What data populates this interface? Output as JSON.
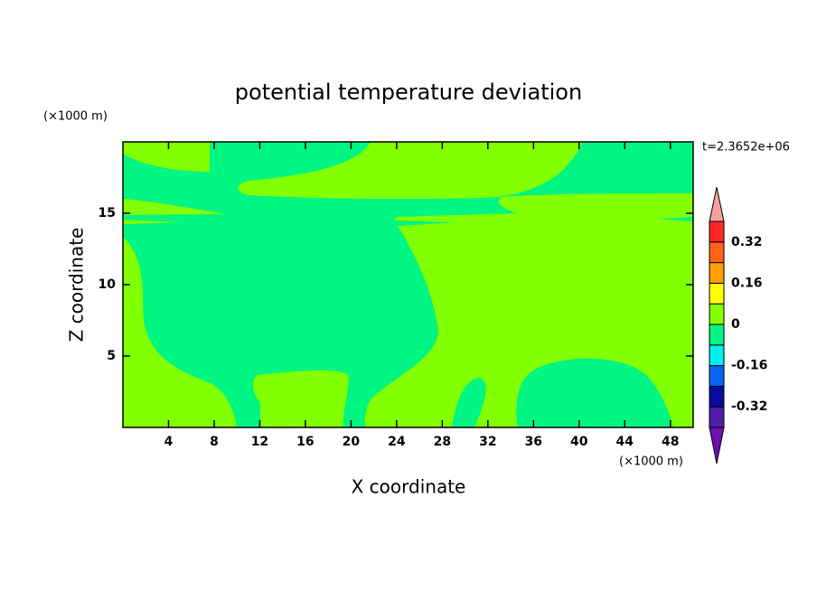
{
  "chart_data": {
    "type": "contour",
    "title": "potential temperature deviation",
    "xlabel": "X coordinate",
    "ylabel": "Z coordinate",
    "xunit": "(×1000 m)",
    "yunit": "(×1000 m)",
    "annotation": "t=2.3652e+06",
    "xlim": [
      0,
      50
    ],
    "ylim": [
      0,
      20
    ],
    "xticks": [
      4,
      8,
      12,
      16,
      20,
      24,
      28,
      32,
      36,
      40,
      44,
      48
    ],
    "yticks": [
      5,
      10,
      15
    ],
    "colorbar": {
      "levels": [
        -0.4,
        -0.32,
        -0.24,
        -0.16,
        -0.08,
        0,
        0.08,
        0.16,
        0.24,
        0.32,
        0.4
      ],
      "colors": [
        "#4b1fa8",
        "#0a0aa0",
        "#0a64f5",
        "#00f0f0",
        "#00f582",
        "#82ff00",
        "#ffff00",
        "#ffa000",
        "#ff6414",
        "#ff2828"
      ],
      "under_color": "#7010b0",
      "over_color": "#f5a0a0",
      "ticks": [
        -0.32,
        -0.16,
        0,
        0.16,
        0.32
      ]
    }
  }
}
